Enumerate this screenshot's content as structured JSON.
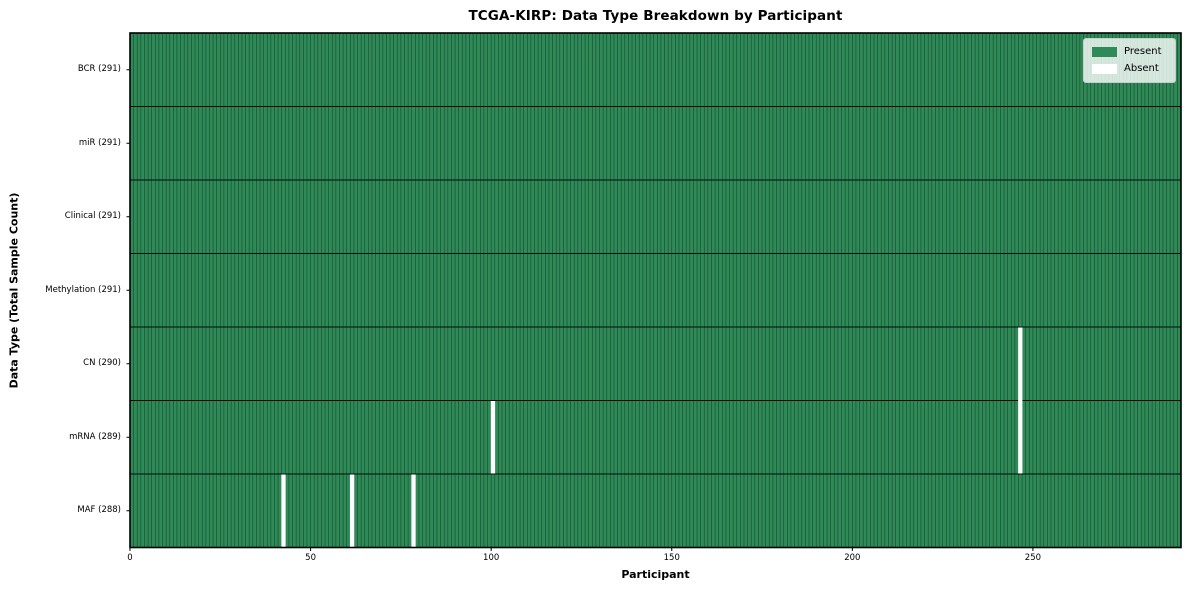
{
  "chart_data": {
    "type": "heatmap",
    "title": "TCGA-KIRP: Data Type Breakdown by Participant",
    "xlabel": "Participant",
    "ylabel": "Data Type (Total Sample Count)",
    "n_participants": 291,
    "x_range": [
      0,
      291
    ],
    "x_tick_labels": [
      "0",
      "50",
      "100",
      "150",
      "200",
      "250"
    ],
    "x_tick_values": [
      0,
      50,
      100,
      150,
      200,
      250
    ],
    "rows": [
      {
        "name": "BCR",
        "label": "BCR (291)",
        "total": 291,
        "missing_participants": []
      },
      {
        "name": "miR",
        "label": "miR (291)",
        "total": 291,
        "missing_participants": []
      },
      {
        "name": "Clinical",
        "label": "Clinical (291)",
        "total": 291,
        "missing_participants": []
      },
      {
        "name": "Methylation",
        "label": "Methylation (291)",
        "total": 291,
        "missing_participants": []
      },
      {
        "name": "CN",
        "label": "CN (290)",
        "total": 290,
        "missing_participants": [
          246
        ]
      },
      {
        "name": "mRNA",
        "label": "mRNA (289)",
        "total": 289,
        "missing_participants": [
          100,
          246
        ]
      },
      {
        "name": "MAF",
        "label": "MAF (288)",
        "total": 288,
        "missing_participants": [
          42,
          61,
          78
        ]
      }
    ],
    "legend": {
      "position": "upper-right",
      "entries": [
        {
          "label": "Present",
          "color": "#2e8b57"
        },
        {
          "label": "Absent",
          "color": "#ffffff"
        }
      ]
    },
    "colors": {
      "present": "#2e8b57",
      "absent": "#ffffff",
      "cell_edge": "#16402a",
      "row_divider": "#000000",
      "axes_border": "#000000",
      "tick": "#000000"
    },
    "grid": "cell-borders-only"
  }
}
